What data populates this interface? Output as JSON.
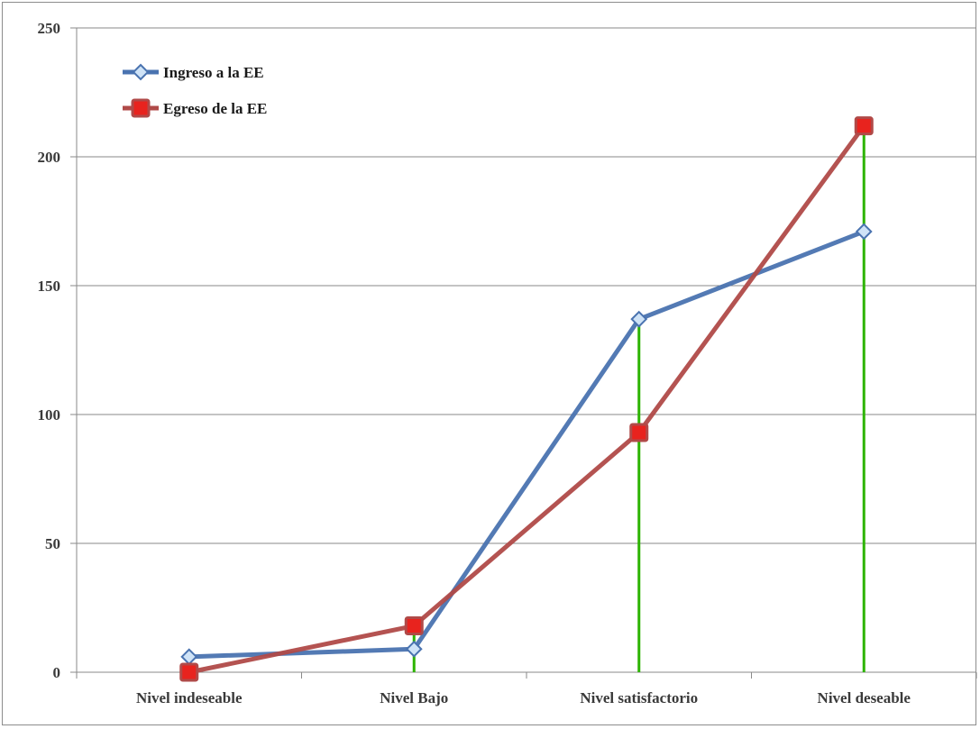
{
  "chart_data": {
    "type": "line",
    "categories": [
      "Nivel indeseable",
      "Nivel Bajo",
      "Nivel satisfactorio",
      "Nivel deseable"
    ],
    "series": [
      {
        "name": "Ingreso a la EE",
        "values": [
          6,
          9,
          137,
          171
        ],
        "color": "#4a73b0",
        "marker": "diamond",
        "marker_fill": "#cfe3f7"
      },
      {
        "name": "Egreso de la EE",
        "values": [
          0,
          18,
          93,
          212
        ],
        "color": "#b04a48",
        "marker": "square",
        "marker_fill": "#e8231e"
      }
    ],
    "drop_lines": {
      "color": "#2db400"
    },
    "ylim": [
      0,
      250
    ],
    "yticks": [
      0,
      50,
      100,
      150,
      200,
      250
    ],
    "grid": "horizontal",
    "legend_position": "top-left",
    "title": "",
    "xlabel": "",
    "ylabel": ""
  }
}
